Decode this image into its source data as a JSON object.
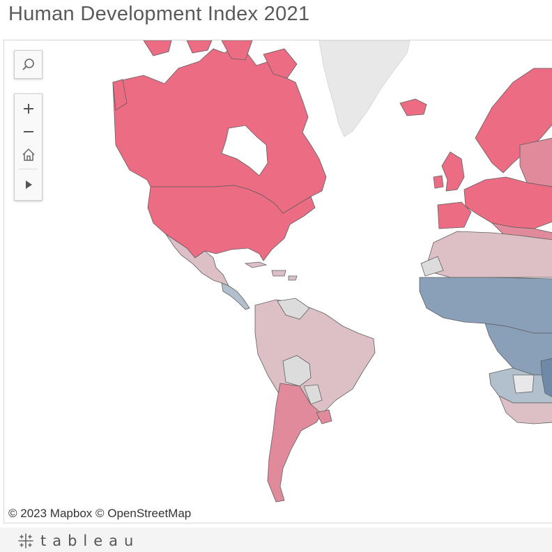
{
  "header": {
    "title": "Human Development Index 2021"
  },
  "map": {
    "attribution": "© 2023 Mapbox © OpenStreetMap",
    "colors": {
      "very_high": "#ec6d83",
      "high_pink": "#e18a9b",
      "medium_pink": "#dcc0c5",
      "no_data": "#dcdcdc",
      "greenland": "#e8e8e8",
      "low_blue": "#8aa0b8",
      "mid_blue": "#b2bfcd",
      "border": "#5e5e5e"
    }
  },
  "controls": {
    "search": {
      "icon": "search-icon"
    },
    "zoom_in": {
      "icon": "plus-icon"
    },
    "zoom_out": {
      "icon": "minus-icon"
    },
    "home": {
      "icon": "home-icon"
    },
    "expand": {
      "icon": "play-arrow-icon"
    }
  },
  "footer": {
    "brand": "tableau",
    "logo_icon": "tableau-logo-icon"
  }
}
